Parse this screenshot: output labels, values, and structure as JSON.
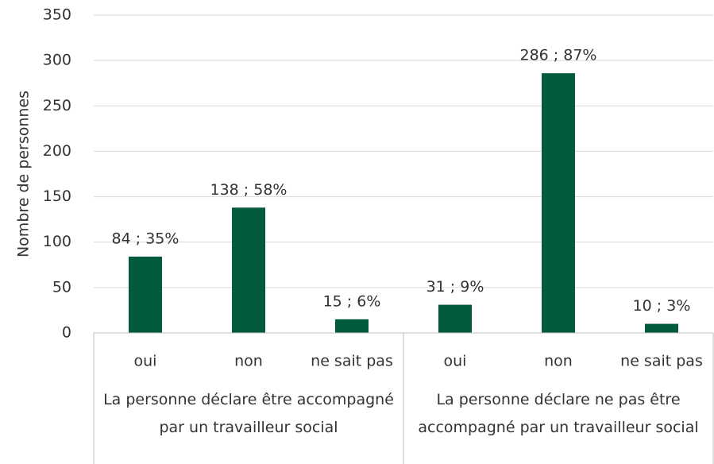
{
  "chart_data": {
    "type": "bar",
    "y_axis_label": "Nombre de personnes",
    "color": "#035b3f",
    "ylim": [
      0,
      350
    ],
    "yticks": [
      0,
      50,
      100,
      150,
      200,
      250,
      300,
      350
    ],
    "grid": true,
    "groups": [
      {
        "label": "La personne déclare être accompagné par un travailleur social",
        "categories": [
          "oui",
          "non",
          "ne sait pas"
        ],
        "values": [
          84,
          138,
          15
        ],
        "value_labels": [
          "84 ; 35%",
          "138 ; 58%",
          "15 ; 6%"
        ]
      },
      {
        "label": "La personne déclare ne pas être accompagné par un travailleur social",
        "categories": [
          "oui",
          "non",
          "ne sait pas"
        ],
        "values": [
          31,
          286,
          10
        ],
        "value_labels": [
          "31 ; 9%",
          "286 ; 87%",
          "10 ; 3%"
        ]
      }
    ]
  }
}
